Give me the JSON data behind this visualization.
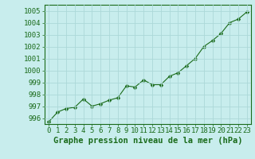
{
  "x": [
    0,
    1,
    2,
    3,
    4,
    5,
    6,
    7,
    8,
    9,
    10,
    11,
    12,
    13,
    14,
    15,
    16,
    17,
    18,
    19,
    20,
    21,
    22,
    23
  ],
  "y": [
    995.7,
    996.5,
    996.8,
    996.9,
    997.6,
    997.0,
    997.2,
    997.5,
    997.7,
    998.7,
    998.6,
    999.2,
    998.8,
    998.8,
    999.5,
    999.8,
    1000.4,
    1001.0,
    1002.0,
    1002.5,
    1003.1,
    1004.0,
    1004.3,
    1004.9
  ],
  "line_color": "#1a6b1a",
  "marker": "D",
  "marker_size": 2.5,
  "background_color": "#c8eded",
  "grid_color": "#acd8d8",
  "ylabel_ticks": [
    996,
    997,
    998,
    999,
    1000,
    1001,
    1002,
    1003,
    1004,
    1005
  ],
  "ylim": [
    995.5,
    1005.5
  ],
  "xlim": [
    -0.5,
    23.5
  ],
  "xlabel": "Graphe pression niveau de la mer (hPa)",
  "xlabel_fontsize": 7.5,
  "tick_fontsize": 6.5,
  "tick_color": "#1a6b1a",
  "label_color": "#1a6b1a",
  "spine_color": "#1a6b1a"
}
